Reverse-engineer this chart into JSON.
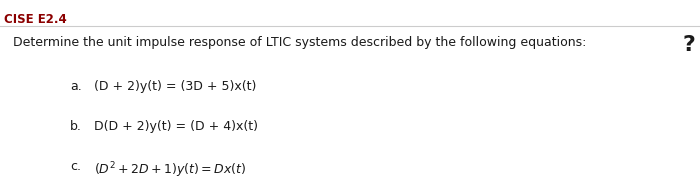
{
  "title_label": "CISE E2.4",
  "main_text": "Determine the unit impulse response of LTIC systems described by the following equations:",
  "question_mark": "?",
  "eq_a_label": "a.",
  "eq_a": "(D + 2)y(t) = (3D + 5)x(t)",
  "eq_b_label": "b.",
  "eq_b": "D(D + 2)y(t) = (D + 4)x(t)",
  "eq_c_label": "c.",
  "bg_color": "#ffffff",
  "text_color": "#1a1a1a",
  "title_color": "#8b0000",
  "line_color": "#cccccc",
  "font_size_title": 8.5,
  "font_size_main": 9.0,
  "font_size_eq": 9.0,
  "font_size_qmark": 16
}
